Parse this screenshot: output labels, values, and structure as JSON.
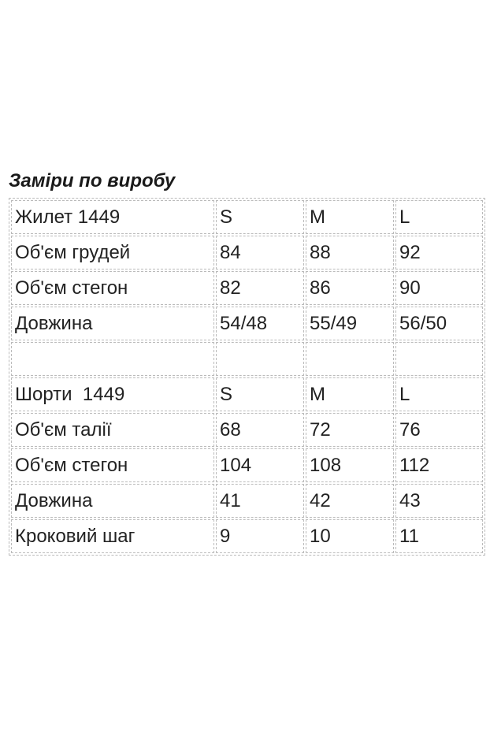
{
  "header": {
    "title": "Заміри по виробу"
  },
  "table": {
    "groups": [
      {
        "rows": [
          [
            "Жилет 1449",
            "S",
            "M",
            "L"
          ],
          [
            "Об'єм грудей",
            "84",
            "88",
            "92"
          ],
          [
            "Об'єм стегон",
            "82",
            "86",
            "90"
          ],
          [
            "Довжина",
            "54/48",
            "55/49",
            "56/50"
          ]
        ]
      },
      {
        "rows": [
          [
            "Шорти  1449",
            "S",
            "M",
            "L"
          ],
          [
            "Об'єм талії",
            "68",
            "72",
            "76"
          ],
          [
            "Об'єм стегон",
            "104",
            "108",
            "112"
          ],
          [
            "Довжина",
            "41",
            "42",
            "43"
          ],
          [
            "Кроковий шаг",
            "9",
            "10",
            "11"
          ]
        ]
      }
    ]
  }
}
